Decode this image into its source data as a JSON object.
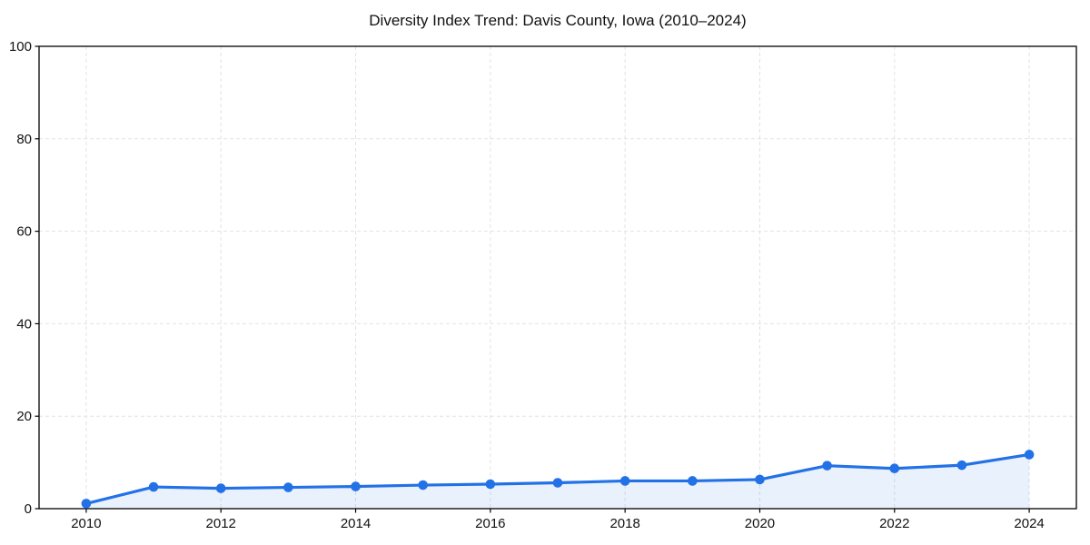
{
  "page": {
    "background_color": "#ffffff",
    "text_color": "#111111"
  },
  "chart_data": {
    "type": "line",
    "title": "Diversity Index Trend: Davis County, Iowa (2010–2024)",
    "x": [
      2010,
      2011,
      2012,
      2013,
      2014,
      2015,
      2016,
      2017,
      2018,
      2019,
      2020,
      2021,
      2022,
      2023,
      2024
    ],
    "series": [
      {
        "name": "Diversity Index",
        "values": [
          1.1,
          4.7,
          4.4,
          4.6,
          4.8,
          5.1,
          5.3,
          5.6,
          6.0,
          6.0,
          6.3,
          9.3,
          8.7,
          9.4,
          11.7
        ]
      }
    ],
    "xlabel": "",
    "ylabel": "",
    "xlim": [
      2009.3,
      2024.7
    ],
    "ylim": [
      0,
      100
    ],
    "xticks": [
      2010,
      2012,
      2014,
      2016,
      2018,
      2020,
      2022,
      2024
    ],
    "yticks": [
      0,
      20,
      40,
      60,
      80,
      100
    ],
    "grid": true,
    "grid_style": "dashed",
    "legend": false,
    "marker": "circle",
    "area_fill": true,
    "colors": {
      "line": "#2371e6",
      "marker": "#2371e6",
      "fill": "rgba(35, 113, 230, 0.10)",
      "grid": "#e2e2e2",
      "spine": "#000000",
      "tick_label": "#111111"
    }
  }
}
